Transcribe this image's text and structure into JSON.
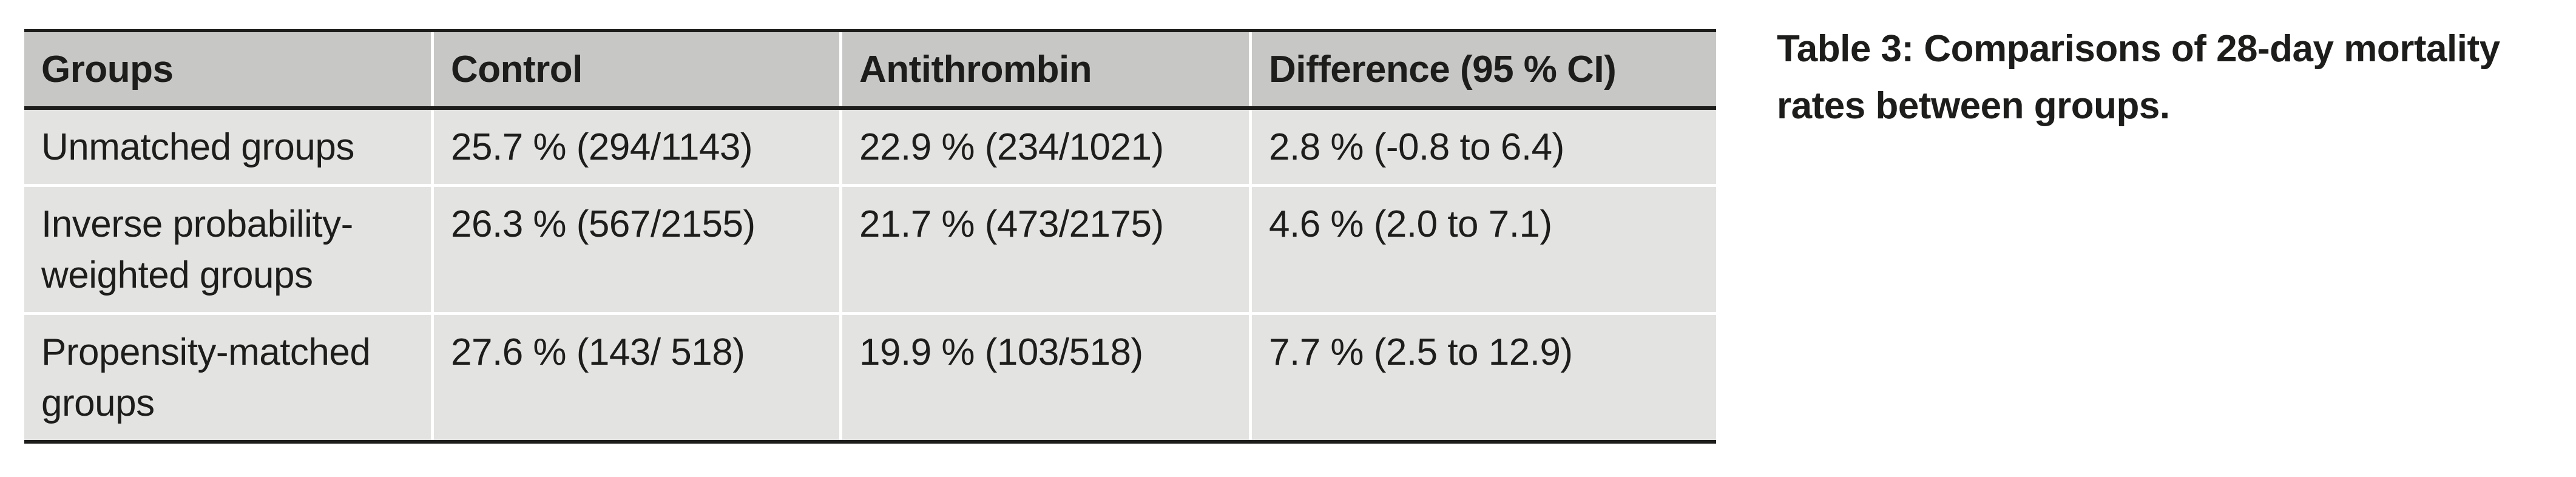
{
  "caption": {
    "text": "Table 3: Comparisons of 28-day mortality rates between groups."
  },
  "table": {
    "columns": [
      "Groups",
      "Control",
      "Antithrombin",
      "Difference (95 % CI)"
    ],
    "rows": [
      {
        "group": "Unmatched groups",
        "control": "25.7 % (294/1143)",
        "antithrombin": "22.9 % (234/1021)",
        "difference": "2.8 % (-0.8 to 6.4)"
      },
      {
        "group": "Inverse probability-weighted groups",
        "control": "26.3 % (567/2155)",
        "antithrombin": "21.7 % (473/2175)",
        "difference": "4.6 % (2.0 to 7.1)"
      },
      {
        "group": "Propensity-matched groups",
        "control": "27.6 % (143/ 518)",
        "antithrombin": "19.9 % (103/518)",
        "difference": "7.7 % (2.5 to 12.9)"
      }
    ],
    "colors": {
      "page_bg": "#ffffff",
      "header_bg": "#c7c7c6",
      "row_bg": "#e3e3e2",
      "border": "#1d1d1b",
      "separator": "#ffffff",
      "text": "#1d1d1b"
    }
  }
}
